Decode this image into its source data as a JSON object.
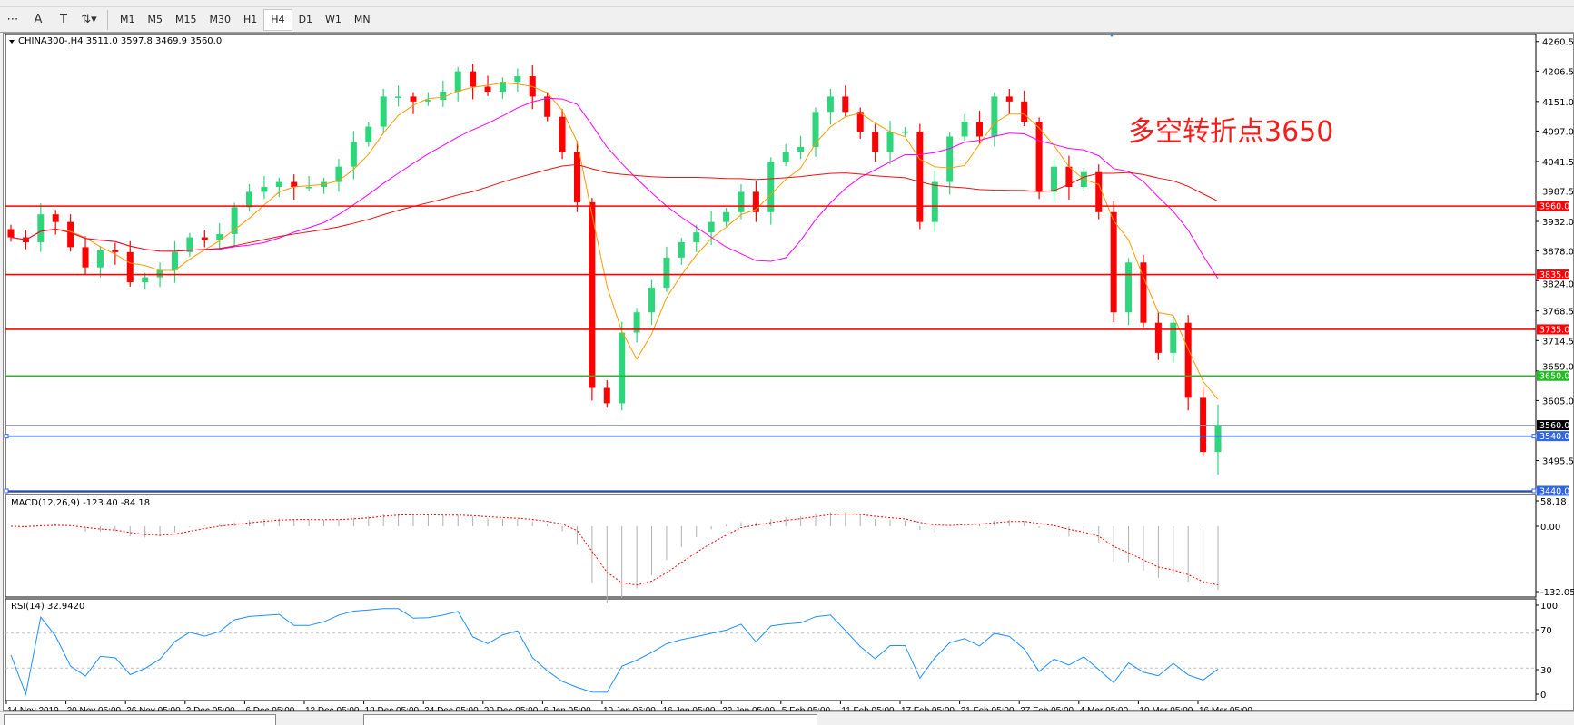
{
  "toolbar": {
    "icons": [
      "grid-icon",
      "text-icon",
      "text-label-icon",
      "arrows-icon"
    ],
    "timeframes": [
      "M1",
      "M5",
      "M15",
      "M30",
      "H1",
      "H4",
      "D1",
      "W1",
      "MN"
    ],
    "active": "H4"
  },
  "chart": {
    "header": "CHINA300-,H4  3511.0 3597.8 3469.9 3560.0",
    "annotation": "多空转折点3650",
    "annotation_color": "#ff1a1a"
  },
  "chart_data": {
    "type": "candlestick",
    "symbol": "CHINA300-",
    "timeframe": "H4",
    "last": {
      "open": 3511.0,
      "high": 3597.8,
      "low": 3469.9,
      "close": 3560.0
    },
    "closes": [
      3903,
      3894,
      3945,
      3931,
      3885,
      3848,
      3879,
      3876,
      3821,
      3830,
      3843,
      3876,
      3903,
      3898,
      3909,
      3958,
      3986,
      3995,
      4004,
      3995,
      3995,
      4004,
      4032,
      4077,
      4105,
      4160,
      4160,
      4151,
      4154,
      4169,
      4206,
      4178,
      4169,
      4187,
      4197,
      4160,
      4123,
      4059,
      3967,
      3628,
      3600,
      3729,
      3766,
      3811,
      3866,
      3894,
      3912,
      3931,
      3949,
      3986,
      3949,
      4041,
      4059,
      4068,
      4132,
      4160,
      4132,
      4096,
      4059,
      4096,
      4096,
      3931,
      4004,
      4087,
      4114,
      4087,
      4160,
      4151,
      4114,
      3986,
      4032,
      3995,
      4022,
      3949,
      3766,
      3857,
      3747,
      3692,
      3747,
      3610,
      3511,
      3560
    ],
    "price_ticks": [
      4260.5,
      4206.5,
      4151.0,
      4097.0,
      4041.5,
      3987.5,
      3932.0,
      3878.0,
      3824.0,
      3768.5,
      3714.5,
      3659.0,
      3605.0,
      3495.5
    ],
    "ylim": [
      3440,
      4270
    ],
    "levels": [
      {
        "price": 3960.0,
        "label": "3960.0",
        "color": "#ff0000"
      },
      {
        "price": 3835.0,
        "label": "3835.0",
        "color": "#ff0000"
      },
      {
        "price": 3735.0,
        "label": "3735.0",
        "color": "#ff0000"
      },
      {
        "price": 3650.0,
        "label": "3650.0",
        "color": "#22bb22"
      },
      {
        "price": 3560.0,
        "label": "3560.0",
        "color": "#000000",
        "kind": "current"
      },
      {
        "price": 3540.0,
        "label": "3540.0",
        "color": "#3366dd"
      },
      {
        "price": 3440.0,
        "label": "3440.0",
        "color": "#3366dd"
      }
    ],
    "moving_averages": [
      {
        "color": "#ff9900"
      },
      {
        "color": "#ff00ff"
      },
      {
        "color": "#ee1111"
      }
    ],
    "x_labels": [
      "14 Nov 2019",
      "20 Nov 05:00",
      "26 Nov 05:00",
      "2 Dec 05:00",
      "6 Dec 05:00",
      "12 Dec 05:00",
      "18 Dec 05:00",
      "24 Dec 05:00",
      "30 Dec 05:00",
      "6 Jan 05:00",
      "10 Jan 05:00",
      "16 Jan 05:00",
      "22 Jan 05:00",
      "5 Feb 05:00",
      "11 Feb 05:00",
      "17 Feb 05:00",
      "21 Feb 05:00",
      "27 Feb 05:00",
      "4 Mar 05:00",
      "10 Mar 05:00",
      "16 Mar 05:00"
    ],
    "macd": {
      "label": "MACD(12,26,9) -123.40 -84.18",
      "ticks": [
        "58.18",
        "0.00",
        "-132.05"
      ],
      "range": [
        -132.05,
        58.18
      ]
    },
    "rsi": {
      "label": "RSI(14) 32.9420",
      "ticks": [
        "100",
        "70",
        "30",
        "0"
      ],
      "levels": [
        70,
        30
      ]
    }
  }
}
